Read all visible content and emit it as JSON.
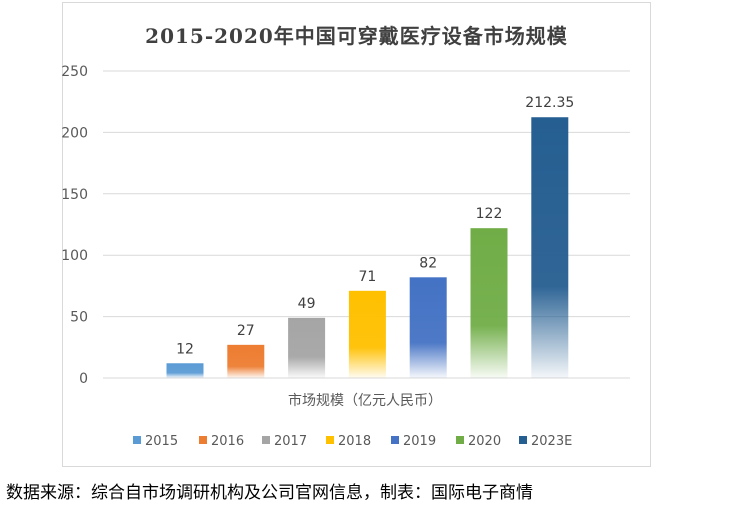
{
  "chart_data": {
    "type": "bar",
    "title": "2015-2020年中国可穿戴医疗设备市场规模",
    "xlabel": "市场规模（亿元人民币）",
    "ylabel": "",
    "categories": [
      "2015",
      "2016",
      "2017",
      "2018",
      "2019",
      "2020",
      "2023E"
    ],
    "values": [
      12,
      27,
      49,
      71,
      82,
      122,
      212.35
    ],
    "value_labels": [
      "12",
      "27",
      "49",
      "71",
      "82",
      "122",
      "212.35"
    ],
    "colors": [
      "#5b9bd5",
      "#ed7d31",
      "#a5a5a5",
      "#ffc000",
      "#4472c4",
      "#70ad47",
      "#255e91"
    ],
    "ylim": [
      0,
      250
    ],
    "yticks": [
      "0",
      "50",
      "100",
      "150",
      "200",
      "250"
    ],
    "grid": true,
    "legend": "bottom"
  },
  "source_note": "数据来源：综合自市场调研机构及公司官网信息，制表：国际电子商情"
}
